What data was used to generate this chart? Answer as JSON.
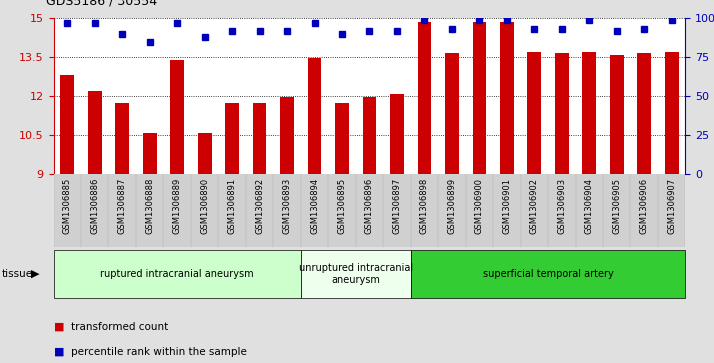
{
  "title": "GDS5186 / 30554",
  "samples": [
    "GSM1306885",
    "GSM1306886",
    "GSM1306887",
    "GSM1306888",
    "GSM1306889",
    "GSM1306890",
    "GSM1306891",
    "GSM1306892",
    "GSM1306893",
    "GSM1306894",
    "GSM1306895",
    "GSM1306896",
    "GSM1306897",
    "GSM1306898",
    "GSM1306899",
    "GSM1306900",
    "GSM1306901",
    "GSM1306902",
    "GSM1306903",
    "GSM1306904",
    "GSM1306905",
    "GSM1306906",
    "GSM1306907"
  ],
  "transformed_count": [
    12.8,
    12.2,
    11.75,
    10.6,
    13.4,
    10.6,
    11.75,
    11.75,
    11.95,
    13.45,
    11.75,
    11.95,
    12.1,
    14.85,
    13.65,
    14.85,
    14.85,
    13.7,
    13.65,
    13.7,
    13.6,
    13.65,
    13.7
  ],
  "percentile_rank": [
    97,
    97,
    90,
    85,
    97,
    88,
    92,
    92,
    92,
    97,
    90,
    92,
    92,
    99,
    93,
    99,
    99,
    93,
    93,
    99,
    92,
    93,
    99
  ],
  "bar_color": "#cc0000",
  "dot_color": "#0000bb",
  "ylim_left": [
    9,
    15
  ],
  "ylim_right": [
    0,
    100
  ],
  "yticks_left": [
    9,
    10.5,
    12,
    13.5,
    15
  ],
  "ytick_labels_left": [
    "9",
    "10.5",
    "12",
    "13.5",
    "15"
  ],
  "yticks_right": [
    0,
    25,
    50,
    75,
    100
  ],
  "ytick_labels_right": [
    "0",
    "25",
    "50",
    "75",
    "100%"
  ],
  "groups": [
    {
      "label": "ruptured intracranial aneurysm",
      "start": 0,
      "end": 9,
      "color": "#ccffcc"
    },
    {
      "label": "unruptured intracranial\naneurysm",
      "start": 9,
      "end": 13,
      "color": "#eeffee"
    },
    {
      "label": "superficial temporal artery",
      "start": 13,
      "end": 23,
      "color": "#33cc33"
    }
  ],
  "tissue_label": "tissue",
  "legend_bar_label": "transformed count",
  "legend_dot_label": "percentile rank within the sample",
  "bg_color": "#e0e0e0",
  "plot_bg_color": "#ffffff",
  "left_axis_color": "#cc0000",
  "right_axis_color": "#0000bb",
  "xtick_bg_color": "#d8d8d8"
}
